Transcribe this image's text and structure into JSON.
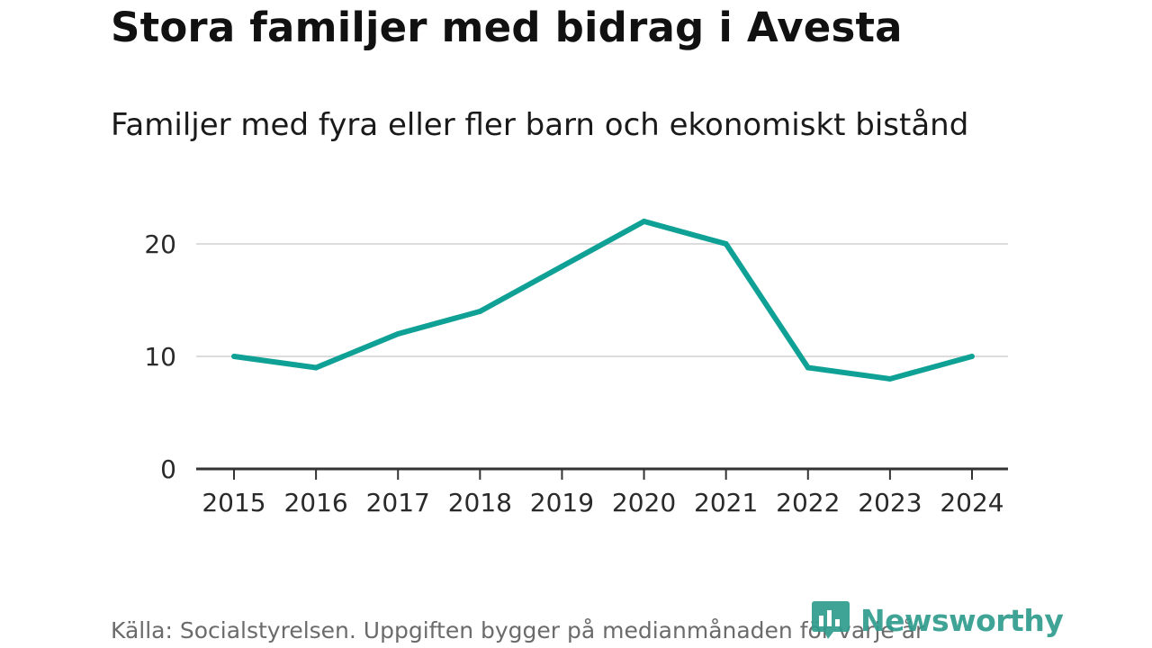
{
  "title": "Stora familjer med bidrag i Avesta",
  "subtitle": "Familjer med fyra eller fler barn och ekonomiskt bistånd",
  "source": "Källa: Socialstyrelsen. Uppgiften bygger på medianmånaden för varje år",
  "brand": {
    "name": "Newsworthy",
    "icon": "newsworthy-logo-icon",
    "color": "#2f9c8e"
  },
  "colors": {
    "line": "#0fa195",
    "grid": "#dcdcdc",
    "axis": "#333333",
    "tick_text": "#2a2a2a"
  },
  "chart_data": {
    "type": "line",
    "title": "Stora familjer med bidrag i Avesta",
    "subtitle": "Familjer med fyra eller fler barn och ekonomiskt bistånd",
    "xlabel": "",
    "ylabel": "",
    "categories": [
      "2015",
      "2016",
      "2017",
      "2018",
      "2019",
      "2020",
      "2021",
      "2022",
      "2023",
      "2024"
    ],
    "series": [
      {
        "name": "Familjer med fyra eller fler barn och ekonomiskt bistånd",
        "values": [
          10,
          9,
          12,
          14,
          18,
          22,
          20,
          9,
          8,
          10
        ]
      }
    ],
    "ylim": [
      0,
      23
    ],
    "yticks": [
      0,
      10,
      20
    ],
    "grid": true,
    "legend": "none"
  }
}
